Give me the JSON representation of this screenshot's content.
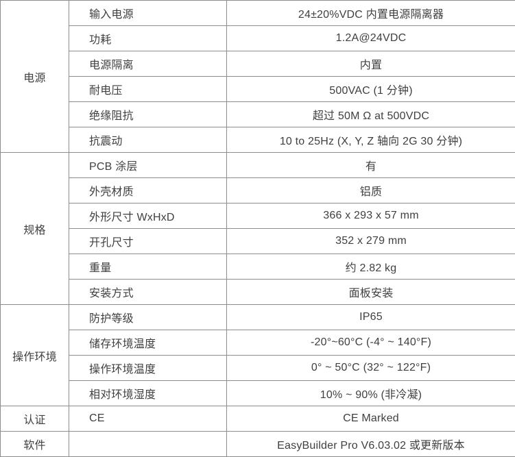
{
  "table": {
    "colors": {
      "text": "#3f3f3f",
      "border": "#8c8c8c",
      "background": "#ffffff"
    },
    "sections": [
      {
        "category": "电源",
        "rows": [
          {
            "label": "输入电源",
            "value": "24±20%VDC 内置电源隔离器"
          },
          {
            "label": "功耗",
            "value": "1.2A@24VDC"
          },
          {
            "label": "电源隔离",
            "value": "内置"
          },
          {
            "label": "耐电压",
            "value": "500VAC (1 分钟)"
          },
          {
            "label": "绝缘阻抗",
            "value": "超过 50M Ω at 500VDC"
          },
          {
            "label": "抗震动",
            "value": "10 to 25Hz (X, Y, Z 轴向 2G 30 分钟)"
          }
        ]
      },
      {
        "category": "规格",
        "rows": [
          {
            "label": "PCB 涂层",
            "value": "有"
          },
          {
            "label": "外壳材质",
            "value": "铝质"
          },
          {
            "label": "外形尺寸 WxHxD",
            "value": "366 x 293 x 57 mm"
          },
          {
            "label": "开孔尺寸",
            "value": "352 x 279 mm"
          },
          {
            "label": "重量",
            "value": "约 2.82 kg"
          },
          {
            "label": "安装方式",
            "value": "面板安装"
          }
        ]
      },
      {
        "category": "操作环境",
        "rows": [
          {
            "label": "防护等级",
            "value": "IP65"
          },
          {
            "label": "储存环境温度",
            "value": "-20°~60°C (-4° ~ 140°F)"
          },
          {
            "label": "操作环境温度",
            "value": "0° ~ 50°C (32° ~ 122°F)"
          },
          {
            "label": "相对环境湿度",
            "value": "10% ~ 90% (非冷凝)"
          }
        ]
      },
      {
        "category": "认证",
        "rows": [
          {
            "label": "CE",
            "value": "CE Marked"
          }
        ]
      },
      {
        "category": "软件",
        "rows": [
          {
            "label": "",
            "value": "EasyBuilder Pro V6.03.02 或更新版本"
          }
        ]
      }
    ]
  }
}
